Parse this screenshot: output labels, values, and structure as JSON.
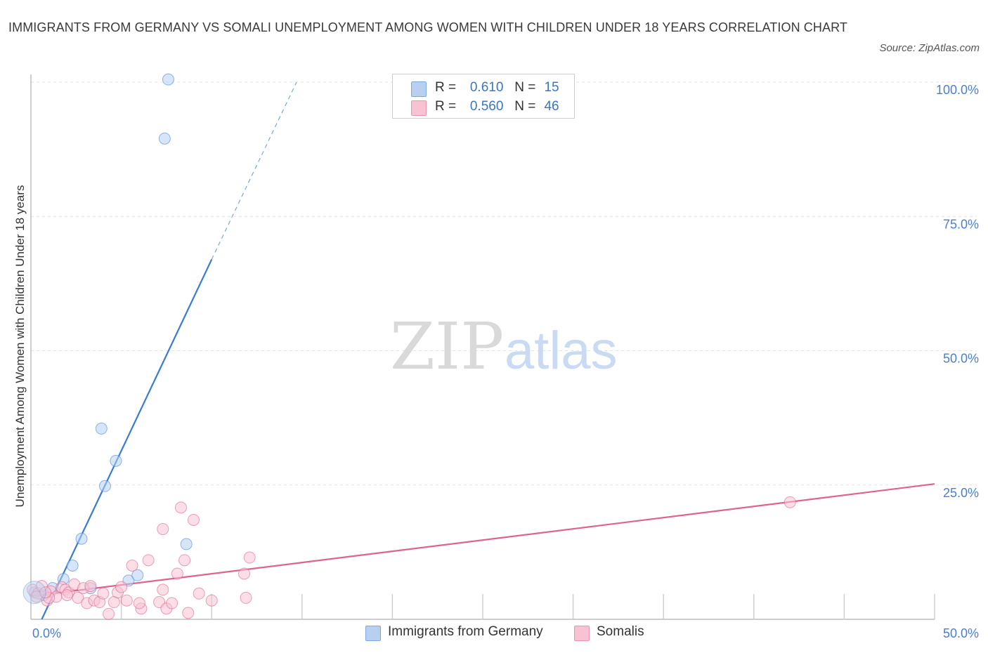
{
  "title": "IMMIGRANTS FROM GERMANY VS SOMALI UNEMPLOYMENT AMONG WOMEN WITH CHILDREN UNDER 18 YEARS CORRELATION CHART",
  "source": "Source: ZipAtlas.com",
  "watermark": {
    "part1": "ZIP",
    "part2": "atlas"
  },
  "legend": {
    "rows": [
      {
        "r_label": "R =",
        "r_value": "0.610",
        "n_label": "N =",
        "n_value": "15",
        "color": "#b7d0f2"
      },
      {
        "r_label": "R =",
        "r_value": "0.560",
        "n_label": "N =",
        "n_value": "46",
        "color": "#f7c2d2"
      }
    ]
  },
  "bottom_legend": [
    {
      "label": "Immigrants from Germany",
      "color": "#b7d0f2"
    },
    {
      "label": "Somalis",
      "color": "#f7c2d2"
    }
  ],
  "chart_data": {
    "type": "scatter",
    "ylabel": "Unemployment Among Women with Children Under 18 years",
    "xlim": [
      0,
      50
    ],
    "ylim": [
      0,
      100
    ],
    "x_tick_labels": [
      {
        "value": 0,
        "label": "0.0%"
      },
      {
        "value": 50,
        "label": "50.0%"
      }
    ],
    "y_tick_labels": [
      {
        "value": 25,
        "label": "25.0%"
      },
      {
        "value": 50,
        "label": "50.0%"
      },
      {
        "value": 75,
        "label": "75.0%"
      },
      {
        "value": 100,
        "label": "100.0%"
      }
    ],
    "series": [
      {
        "name": "Immigrants from Germany",
        "color": "#4a86d8",
        "fill": "#b7d0f2",
        "points": [
          [
            0.2,
            5.0
          ],
          [
            0.7,
            4.5
          ],
          [
            1.2,
            5.8
          ],
          [
            1.8,
            7.5
          ],
          [
            2.3,
            10.0
          ],
          [
            2.8,
            15.0
          ],
          [
            3.9,
            35.5
          ],
          [
            4.1,
            24.8
          ],
          [
            4.7,
            29.5
          ],
          [
            5.4,
            7.2
          ],
          [
            5.9,
            8.2
          ],
          [
            3.3,
            5.8
          ],
          [
            8.6,
            14.0
          ],
          [
            7.4,
            89.5
          ],
          [
            7.6,
            100.5
          ]
        ],
        "trend": {
          "x0": 0.6,
          "y0": 0.0,
          "x1": 10.0,
          "y1": 67.0,
          "dash_x1": 14.7,
          "dash_y1": 100.0
        }
      },
      {
        "name": "Somalis",
        "color": "#e0628e",
        "fill": "#f7c2d2",
        "points": [
          [
            0.1,
            5.5
          ],
          [
            0.4,
            4.8
          ],
          [
            0.6,
            6.2
          ],
          [
            0.9,
            3.5
          ],
          [
            1.1,
            5.2
          ],
          [
            1.4,
            4.2
          ],
          [
            1.7,
            6.0
          ],
          [
            1.9,
            5.5
          ],
          [
            2.1,
            5.0
          ],
          [
            2.4,
            6.5
          ],
          [
            2.6,
            4.0
          ],
          [
            2.9,
            5.8
          ],
          [
            3.1,
            3.0
          ],
          [
            3.3,
            6.2
          ],
          [
            3.5,
            3.5
          ],
          [
            3.8,
            3.2
          ],
          [
            4.0,
            4.8
          ],
          [
            4.3,
            1.0
          ],
          [
            4.6,
            3.2
          ],
          [
            4.8,
            5.0
          ],
          [
            5.0,
            6.0
          ],
          [
            5.3,
            3.5
          ],
          [
            5.6,
            10.0
          ],
          [
            6.1,
            2.0
          ],
          [
            6.5,
            11.0
          ],
          [
            7.1,
            3.2
          ],
          [
            7.3,
            5.5
          ],
          [
            7.5,
            2.0
          ],
          [
            7.8,
            3.0
          ],
          [
            8.1,
            8.5
          ],
          [
            8.5,
            11.0
          ],
          [
            8.7,
            1.2
          ],
          [
            9.0,
            18.5
          ],
          [
            9.3,
            4.8
          ],
          [
            10.0,
            3.5
          ],
          [
            7.3,
            16.8
          ],
          [
            8.3,
            20.8
          ],
          [
            12.1,
            11.5
          ],
          [
            11.8,
            8.5
          ],
          [
            11.9,
            4.0
          ],
          [
            6.0,
            3.0
          ],
          [
            2.0,
            4.5
          ],
          [
            1.0,
            4.0
          ],
          [
            0.3,
            4.2
          ],
          [
            42.0,
            21.8
          ],
          [
            0.8,
            5.0
          ]
        ],
        "trend": {
          "x0": 0.0,
          "y0": 4.3,
          "x1": 50.0,
          "y1": 25.2
        }
      }
    ]
  }
}
